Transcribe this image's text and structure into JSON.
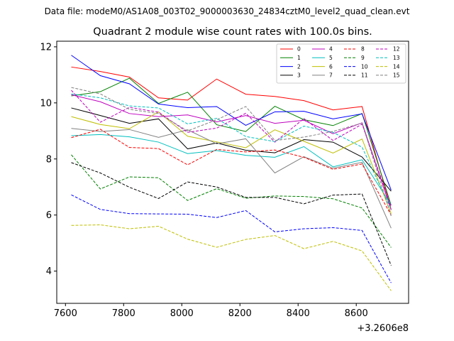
{
  "chart_data": {
    "type": "line",
    "suptitle": "Data file: modeM0/AS1A08_003T02_9000003630_24834cztM0_level2_quad_clean.evt",
    "title": "Quadrant 2 module wise count rates with 100.0s bins.",
    "xlabel": "",
    "ylabel": "",
    "x_offset_label": "+3.2606e8",
    "x": [
      7620,
      7720,
      7820,
      7920,
      8020,
      8120,
      8220,
      8320,
      8420,
      8520,
      8620,
      8720
    ],
    "xlim": [
      7570,
      8780
    ],
    "ylim": [
      2.85,
      12.2
    ],
    "xticks": [
      7600,
      7800,
      8000,
      8200,
      8400,
      8600
    ],
    "xtick_labels": [
      "7600",
      "7800",
      "8000",
      "8200",
      "8400",
      "8600"
    ],
    "yticks": [
      4,
      6,
      8,
      10,
      12
    ],
    "ytick_labels": [
      "4",
      "6",
      "8",
      "10",
      "12"
    ],
    "grid": false,
    "legend_position": "top-right",
    "series": [
      {
        "name": "0",
        "color": "#ff0000",
        "dash": "solid",
        "values": [
          11.28,
          11.12,
          10.92,
          10.18,
          10.1,
          10.85,
          10.31,
          10.23,
          10.08,
          9.75,
          9.87,
          6.2
        ]
      },
      {
        "name": "1",
        "color": "#008000",
        "dash": "solid",
        "values": [
          10.25,
          10.4,
          10.88,
          9.98,
          10.38,
          9.22,
          8.98,
          9.88,
          9.4,
          9.19,
          9.62,
          6.35
        ]
      },
      {
        "name": "2",
        "color": "#0000ff",
        "dash": "solid",
        "values": [
          11.7,
          10.97,
          10.68,
          9.96,
          9.83,
          9.87,
          9.2,
          9.68,
          9.7,
          9.43,
          9.61,
          6.89
        ]
      },
      {
        "name": "3",
        "color": "#000000",
        "dash": "solid",
        "values": [
          9.82,
          9.55,
          9.27,
          9.43,
          8.36,
          8.57,
          8.31,
          8.22,
          8.69,
          8.6,
          8.07,
          6.85
        ]
      },
      {
        "name": "4",
        "color": "#bf00bf",
        "dash": "solid",
        "values": [
          10.29,
          10.04,
          9.62,
          9.51,
          9.57,
          9.32,
          9.55,
          9.27,
          9.38,
          8.9,
          9.29,
          6.18
        ]
      },
      {
        "name": "5",
        "color": "#00bfbf",
        "dash": "solid",
        "values": [
          8.83,
          8.87,
          8.79,
          8.6,
          8.19,
          8.3,
          8.13,
          8.06,
          8.44,
          7.72,
          7.97,
          6.36
        ]
      },
      {
        "name": "6",
        "color": "#bfbf00",
        "dash": "solid",
        "values": [
          9.51,
          9.23,
          9.08,
          9.68,
          8.81,
          8.61,
          8.4,
          9.04,
          8.63,
          8.21,
          8.71,
          6.05
        ]
      },
      {
        "name": "7",
        "color": "#808080",
        "dash": "solid",
        "values": [
          9.09,
          8.98,
          9.05,
          8.77,
          9.04,
          8.54,
          8.72,
          7.5,
          8.08,
          7.67,
          7.88,
          5.53
        ]
      },
      {
        "name": "8",
        "color": "#ff0000",
        "dash": "dashed",
        "values": [
          8.76,
          9.06,
          8.41,
          8.37,
          7.79,
          8.34,
          8.25,
          8.32,
          8.06,
          7.63,
          7.82,
          6.0
        ]
      },
      {
        "name": "9",
        "color": "#008000",
        "dash": "dashed",
        "values": [
          8.15,
          6.93,
          7.36,
          7.33,
          6.52,
          6.94,
          6.6,
          6.68,
          6.66,
          6.58,
          6.25,
          4.84
        ]
      },
      {
        "name": "10",
        "color": "#0000ff",
        "dash": "dashed",
        "values": [
          6.72,
          6.2,
          6.05,
          6.04,
          6.03,
          5.91,
          6.16,
          5.4,
          5.51,
          5.55,
          5.45,
          3.58
        ]
      },
      {
        "name": "11",
        "color": "#000000",
        "dash": "dashed",
        "values": [
          7.87,
          7.5,
          6.99,
          6.59,
          7.18,
          7.0,
          6.63,
          6.63,
          6.4,
          6.71,
          6.75,
          4.2
        ]
      },
      {
        "name": "12",
        "color": "#bf00bf",
        "dash": "dashed",
        "values": [
          10.45,
          9.31,
          9.84,
          9.67,
          8.95,
          9.1,
          9.63,
          8.6,
          9.44,
          8.66,
          9.24,
          6.3
        ]
      },
      {
        "name": "13",
        "color": "#00bfbf",
        "dash": "dashed",
        "values": [
          10.32,
          10.18,
          9.89,
          9.82,
          9.25,
          9.45,
          8.8,
          8.62,
          9.17,
          8.95,
          8.42,
          6.2
        ]
      },
      {
        "name": "14",
        "color": "#bfbf00",
        "dash": "dashed",
        "values": [
          5.63,
          5.65,
          5.51,
          5.6,
          5.14,
          4.85,
          5.13,
          5.27,
          4.8,
          5.06,
          4.72,
          3.3
        ]
      },
      {
        "name": "15",
        "color": "#808080",
        "dash": "dashed",
        "values": [
          10.55,
          10.32,
          9.77,
          9.62,
          9.0,
          9.4,
          9.87,
          8.66,
          8.78,
          8.98,
          9.28,
          5.96
        ]
      }
    ]
  }
}
